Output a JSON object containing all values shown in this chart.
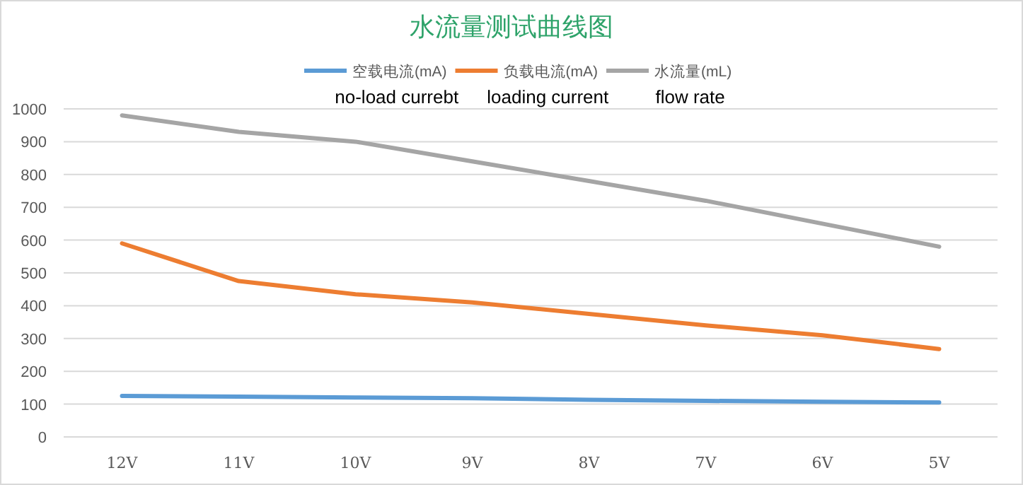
{
  "chart_data": {
    "type": "line",
    "title": "水流量测试曲线图",
    "categories": [
      "12V",
      "11V",
      "10V",
      "9V",
      "8V",
      "7V",
      "6V",
      "5V"
    ],
    "series": [
      {
        "name": "空载电流(mA)",
        "color": "#5b9bd5",
        "values": [
          125,
          123,
          120,
          118,
          113,
          110,
          107,
          105
        ]
      },
      {
        "name": "负载电流(mA)",
        "color": "#ed7d31",
        "values": [
          590,
          475,
          435,
          410,
          375,
          340,
          310,
          268
        ]
      },
      {
        "name": "水流量(mL)",
        "color": "#a5a5a5",
        "values": [
          980,
          930,
          900,
          840,
          780,
          720,
          650,
          580
        ]
      }
    ],
    "annotations": [
      "no-load currebt",
      "loading current",
      "flow rate"
    ],
    "ylim": [
      0,
      1000
    ],
    "yticks": [
      0,
      100,
      200,
      300,
      400,
      500,
      600,
      700,
      800,
      900,
      1000
    ],
    "grid": "y",
    "legend": "top",
    "line_style": "solid"
  }
}
